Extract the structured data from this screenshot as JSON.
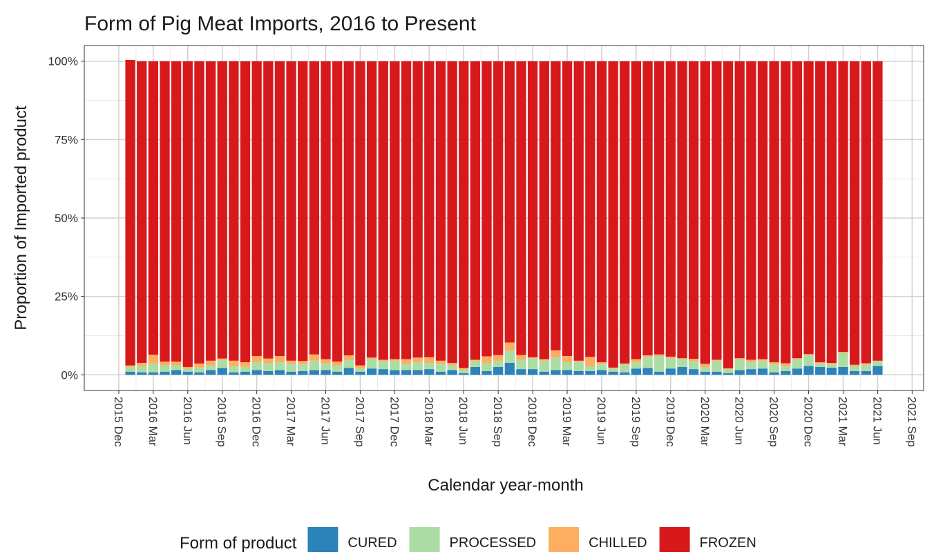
{
  "chart_data": {
    "type": "stacked_bar",
    "title": "Form of Pig Meat Imports, 2016 to Present",
    "x_label": "Calendar year-month",
    "y_label": "Proportion of Imported product",
    "legend_title": "Form of product",
    "legend_position": "bottom",
    "grid": true,
    "x": [
      "2016-01",
      "2016-02",
      "2016-03",
      "2016-04",
      "2016-05",
      "2016-06",
      "2016-07",
      "2016-08",
      "2016-09",
      "2016-10",
      "2016-11",
      "2016-12",
      "2017-01",
      "2017-02",
      "2017-03",
      "2017-04",
      "2017-05",
      "2017-06",
      "2017-07",
      "2017-08",
      "2017-09",
      "2017-10",
      "2017-11",
      "2017-12",
      "2018-01",
      "2018-02",
      "2018-03",
      "2018-04",
      "2018-05",
      "2018-06",
      "2018-07",
      "2018-08",
      "2018-09",
      "2018-10",
      "2018-11",
      "2018-12",
      "2019-01",
      "2019-02",
      "2019-03",
      "2019-04",
      "2019-05",
      "2019-06",
      "2019-07",
      "2019-08",
      "2019-09",
      "2019-10",
      "2019-11",
      "2019-12",
      "2020-01",
      "2020-02",
      "2020-03",
      "2020-04",
      "2020-05",
      "2020-06",
      "2020-07",
      "2020-08",
      "2020-09",
      "2020-10",
      "2020-11",
      "2020-12",
      "2021-01",
      "2021-02",
      "2021-03",
      "2021-04",
      "2021-05",
      "2021-06"
    ],
    "series": [
      {
        "name": "CURED",
        "color": "#2b83ba",
        "values": [
          1,
          0.8,
          0.8,
          1,
          1.5,
          1,
          0.8,
          1.5,
          2.2,
          0.8,
          1,
          1.5,
          1.2,
          1.5,
          1,
          1.2,
          1.5,
          1.5,
          1,
          2.2,
          1,
          2,
          1.8,
          1.5,
          1.5,
          1.5,
          1.8,
          1,
          1.5,
          0.5,
          2.5,
          1.2,
          2.5,
          3.8,
          1.8,
          1.8,
          1,
          1.5,
          1.5,
          1.2,
          1.2,
          1.5,
          1,
          0.8,
          2,
          2.2,
          1,
          2,
          2.5,
          1.8,
          1,
          1,
          0.5,
          1.5,
          1.8,
          2,
          0.8,
          1.2,
          2,
          2.8,
          2.5,
          2.3,
          2.5,
          1.2,
          1.2,
          2.8
        ]
      },
      {
        "name": "PROCESSED",
        "color": "#abdda4",
        "values": [
          1.5,
          2,
          2.8,
          2,
          1.5,
          1,
          1.5,
          1.5,
          2.5,
          2,
          1.5,
          2.5,
          2.5,
          2.5,
          2.5,
          2.2,
          3,
          2.2,
          2,
          2.5,
          1,
          3,
          2.5,
          3,
          2,
          2.5,
          2,
          2.5,
          1.5,
          1.2,
          2,
          2.5,
          2,
          4,
          3,
          3.5,
          3.5,
          4,
          2.5,
          3,
          1.5,
          2,
          1,
          2.5,
          2,
          3.5,
          5,
          3.3,
          2.5,
          2.5,
          1.5,
          3.5,
          1.3,
          3.5,
          2.2,
          2.5,
          2.5,
          1.5,
          3,
          3.5,
          1.2,
          1,
          4.5,
          1.5,
          2,
          1.5
        ]
      },
      {
        "name": "CHILLED",
        "color": "#fdae61",
        "values": [
          0.5,
          1,
          2.8,
          1.2,
          1.2,
          0.5,
          1.3,
          1.5,
          0.5,
          1.7,
          1.5,
          2,
          1.5,
          2,
          1,
          1,
          2,
          1.3,
          1.2,
          1.5,
          1,
          0.5,
          0.5,
          0.5,
          1.5,
          1.5,
          1.8,
          1,
          0.8,
          0.5,
          0.3,
          2.2,
          1.8,
          2.5,
          1.5,
          0.3,
          0.5,
          2.3,
          2,
          0.3,
          3,
          0.5,
          0.3,
          0.3,
          1,
          0.5,
          0.5,
          0.5,
          0.3,
          0.8,
          1,
          0.3,
          0.3,
          0.3,
          0.8,
          0.5,
          0.7,
          1,
          0.3,
          0.3,
          0.3,
          0.5,
          0.3,
          0.5,
          0.5,
          0.2
        ]
      },
      {
        "name": "FROZEN",
        "color": "#d7191c",
        "values": [
          97.4,
          96.2,
          93.6,
          95.8,
          95.8,
          97.5,
          96.4,
          95.5,
          94.8,
          95.5,
          96,
          94,
          94.8,
          94,
          95.5,
          95.6,
          93.5,
          95,
          95.8,
          93.8,
          97,
          94.5,
          95.2,
          95,
          95,
          94.5,
          94.4,
          95.5,
          96.2,
          97.8,
          95.2,
          94.1,
          93.7,
          89.7,
          93.7,
          94.4,
          95,
          92.2,
          94,
          95.5,
          94.3,
          96,
          97.7,
          96.4,
          95,
          93.8,
          93.5,
          94.2,
          94.7,
          94.9,
          96.5,
          95.2,
          97.9,
          94.7,
          95.2,
          95,
          96,
          96.3,
          94.7,
          93.4,
          96,
          96.2,
          92.7,
          96.8,
          96.3,
          95.5
        ]
      }
    ],
    "xlim": [
      "2015-09",
      "2021-10"
    ],
    "xticks": [
      {
        "value": "2015-12",
        "label": "2015 Dec"
      },
      {
        "value": "2016-03",
        "label": "2016 Mar"
      },
      {
        "value": "2016-06",
        "label": "2016 Jun"
      },
      {
        "value": "2016-09",
        "label": "2016 Sep"
      },
      {
        "value": "2016-12",
        "label": "2016 Dec"
      },
      {
        "value": "2017-03",
        "label": "2017 Mar"
      },
      {
        "value": "2017-06",
        "label": "2017 Jun"
      },
      {
        "value": "2017-09",
        "label": "2017 Sep"
      },
      {
        "value": "2017-12",
        "label": "2017 Dec"
      },
      {
        "value": "2018-03",
        "label": "2018 Mar"
      },
      {
        "value": "2018-06",
        "label": "2018 Jun"
      },
      {
        "value": "2018-09",
        "label": "2018 Sep"
      },
      {
        "value": "2018-12",
        "label": "2018 Dec"
      },
      {
        "value": "2019-03",
        "label": "2019 Mar"
      },
      {
        "value": "2019-06",
        "label": "2019 Jun"
      },
      {
        "value": "2019-09",
        "label": "2019 Sep"
      },
      {
        "value": "2019-12",
        "label": "2019 Dec"
      },
      {
        "value": "2020-03",
        "label": "2020 Mar"
      },
      {
        "value": "2020-06",
        "label": "2020 Jun"
      },
      {
        "value": "2020-09",
        "label": "2020 Sep"
      },
      {
        "value": "2020-12",
        "label": "2020 Dec"
      },
      {
        "value": "2021-03",
        "label": "2021 Mar"
      },
      {
        "value": "2021-06",
        "label": "2021 Jun"
      },
      {
        "value": "2021-09",
        "label": "2021 Sep"
      }
    ],
    "ylim": [
      -5,
      105
    ],
    "yticks": [
      {
        "value": 0,
        "label": "0%"
      },
      {
        "value": 25,
        "label": "25%"
      },
      {
        "value": 50,
        "label": "50%"
      },
      {
        "value": 75,
        "label": "75%"
      },
      {
        "value": 100,
        "label": "100%"
      }
    ]
  }
}
